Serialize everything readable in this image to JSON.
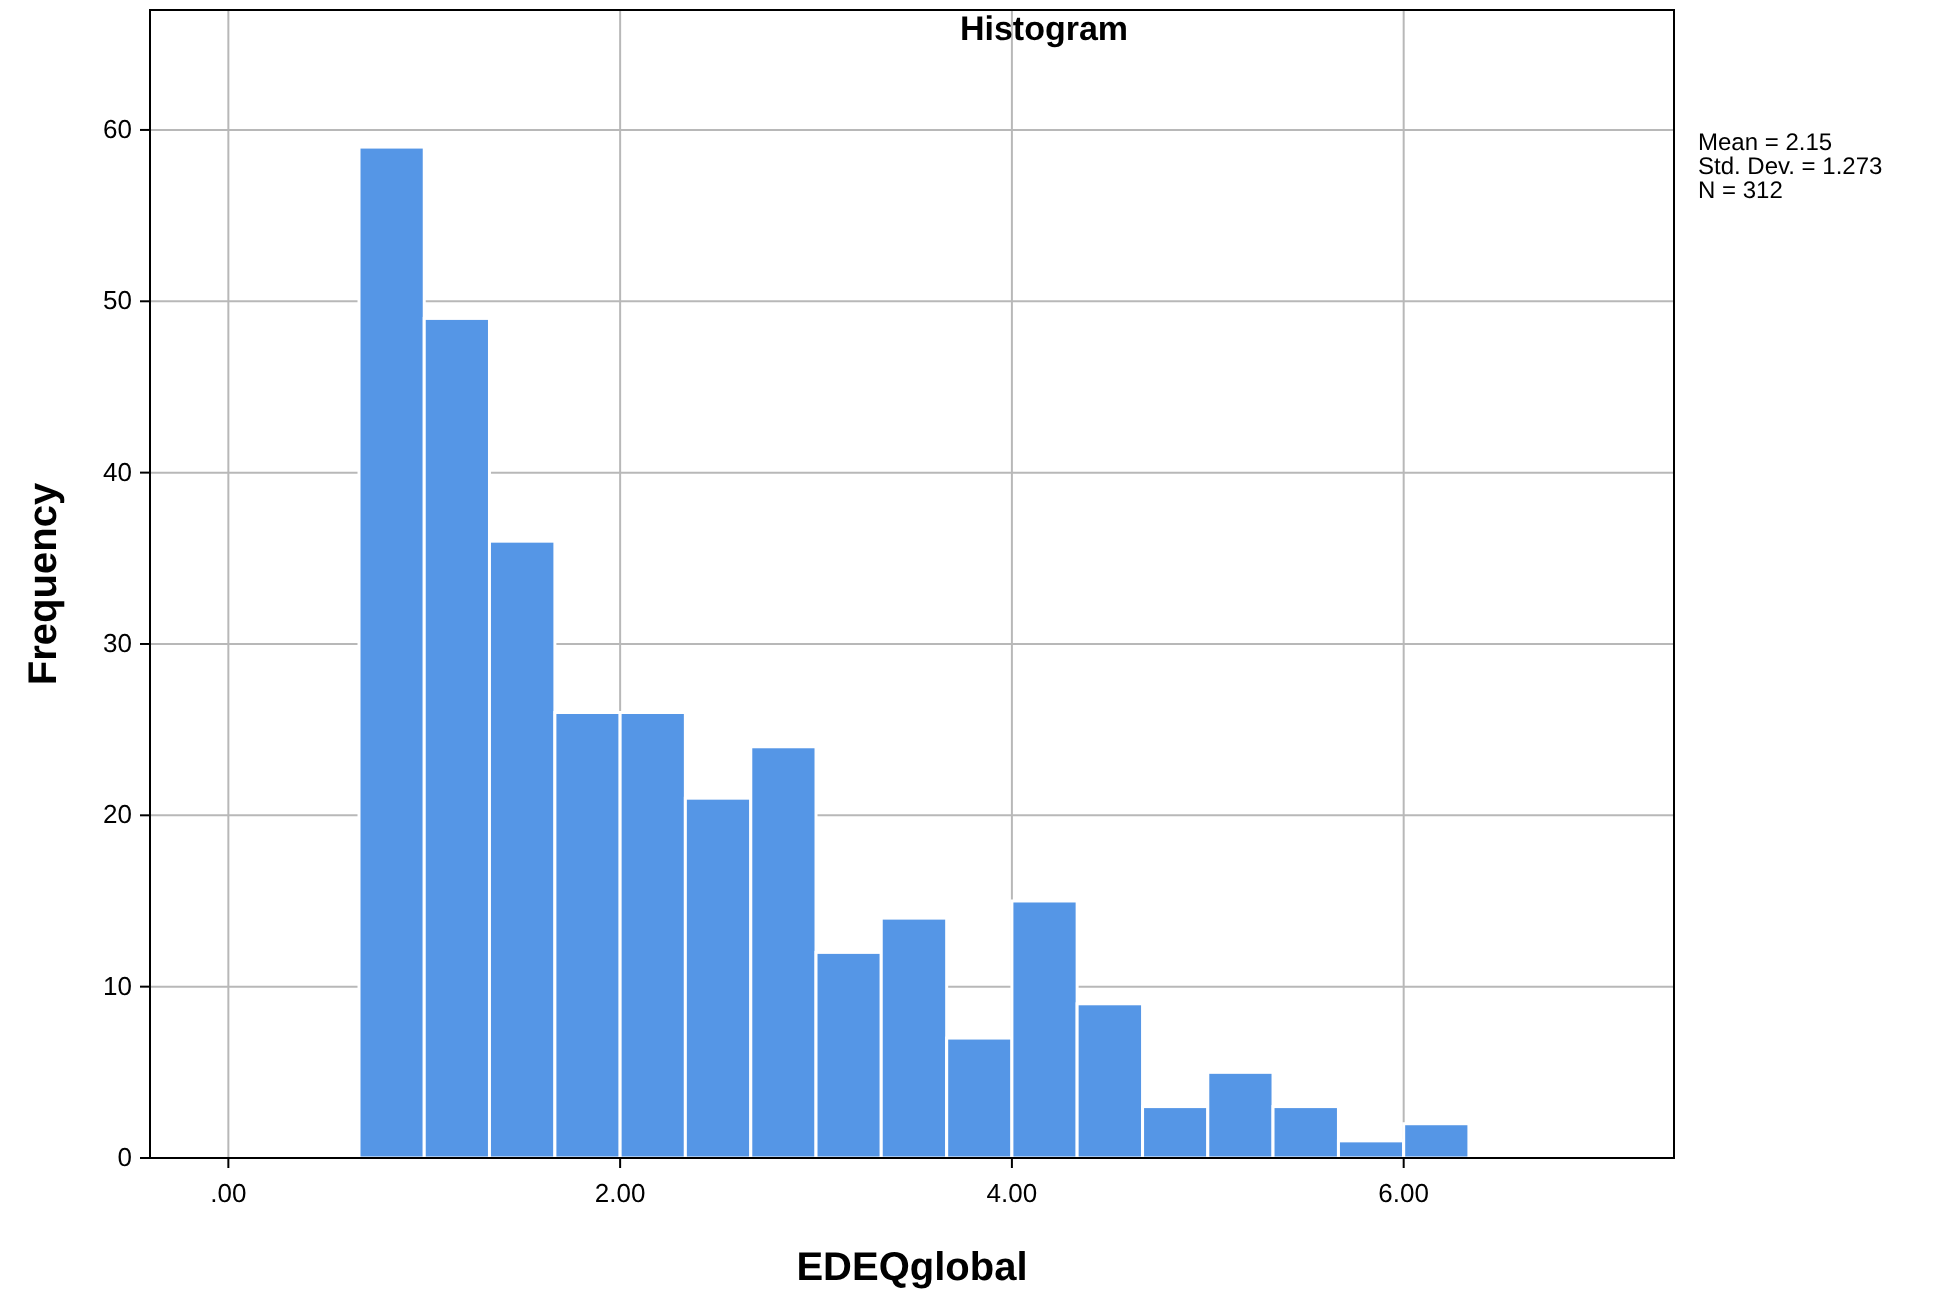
{
  "chart_data": {
    "type": "histogram",
    "title": "Histogram",
    "xlabel": "EDEQglobal",
    "ylabel": "Frequency",
    "bins": [
      0.667,
      1,
      1.333,
      1.667,
      2,
      2.333,
      2.667,
      3,
      3.333,
      3.667,
      4,
      4.333,
      4.667,
      5,
      5.333,
      5.667,
      6,
      6.333
    ],
    "values": [
      59,
      49,
      36,
      26,
      26,
      21,
      24,
      12,
      14,
      7,
      15,
      9,
      3,
      5,
      3,
      1,
      2
    ],
    "color": "#5596e6",
    "xlim": [
      -0.4,
      7.38
    ],
    "xticks": [
      {
        "value": 0,
        "label": ".00"
      },
      {
        "value": 2,
        "label": "2.00"
      },
      {
        "value": 4,
        "label": "4.00"
      },
      {
        "value": 6,
        "label": "6.00"
      }
    ],
    "ylim": [
      0,
      67
    ],
    "yticks": [
      0,
      10,
      20,
      30,
      40,
      50,
      60
    ],
    "grid": true,
    "annotations": [
      "Mean = 2.15",
      "Std. Dev. = 1.273",
      "N = 312"
    ]
  }
}
